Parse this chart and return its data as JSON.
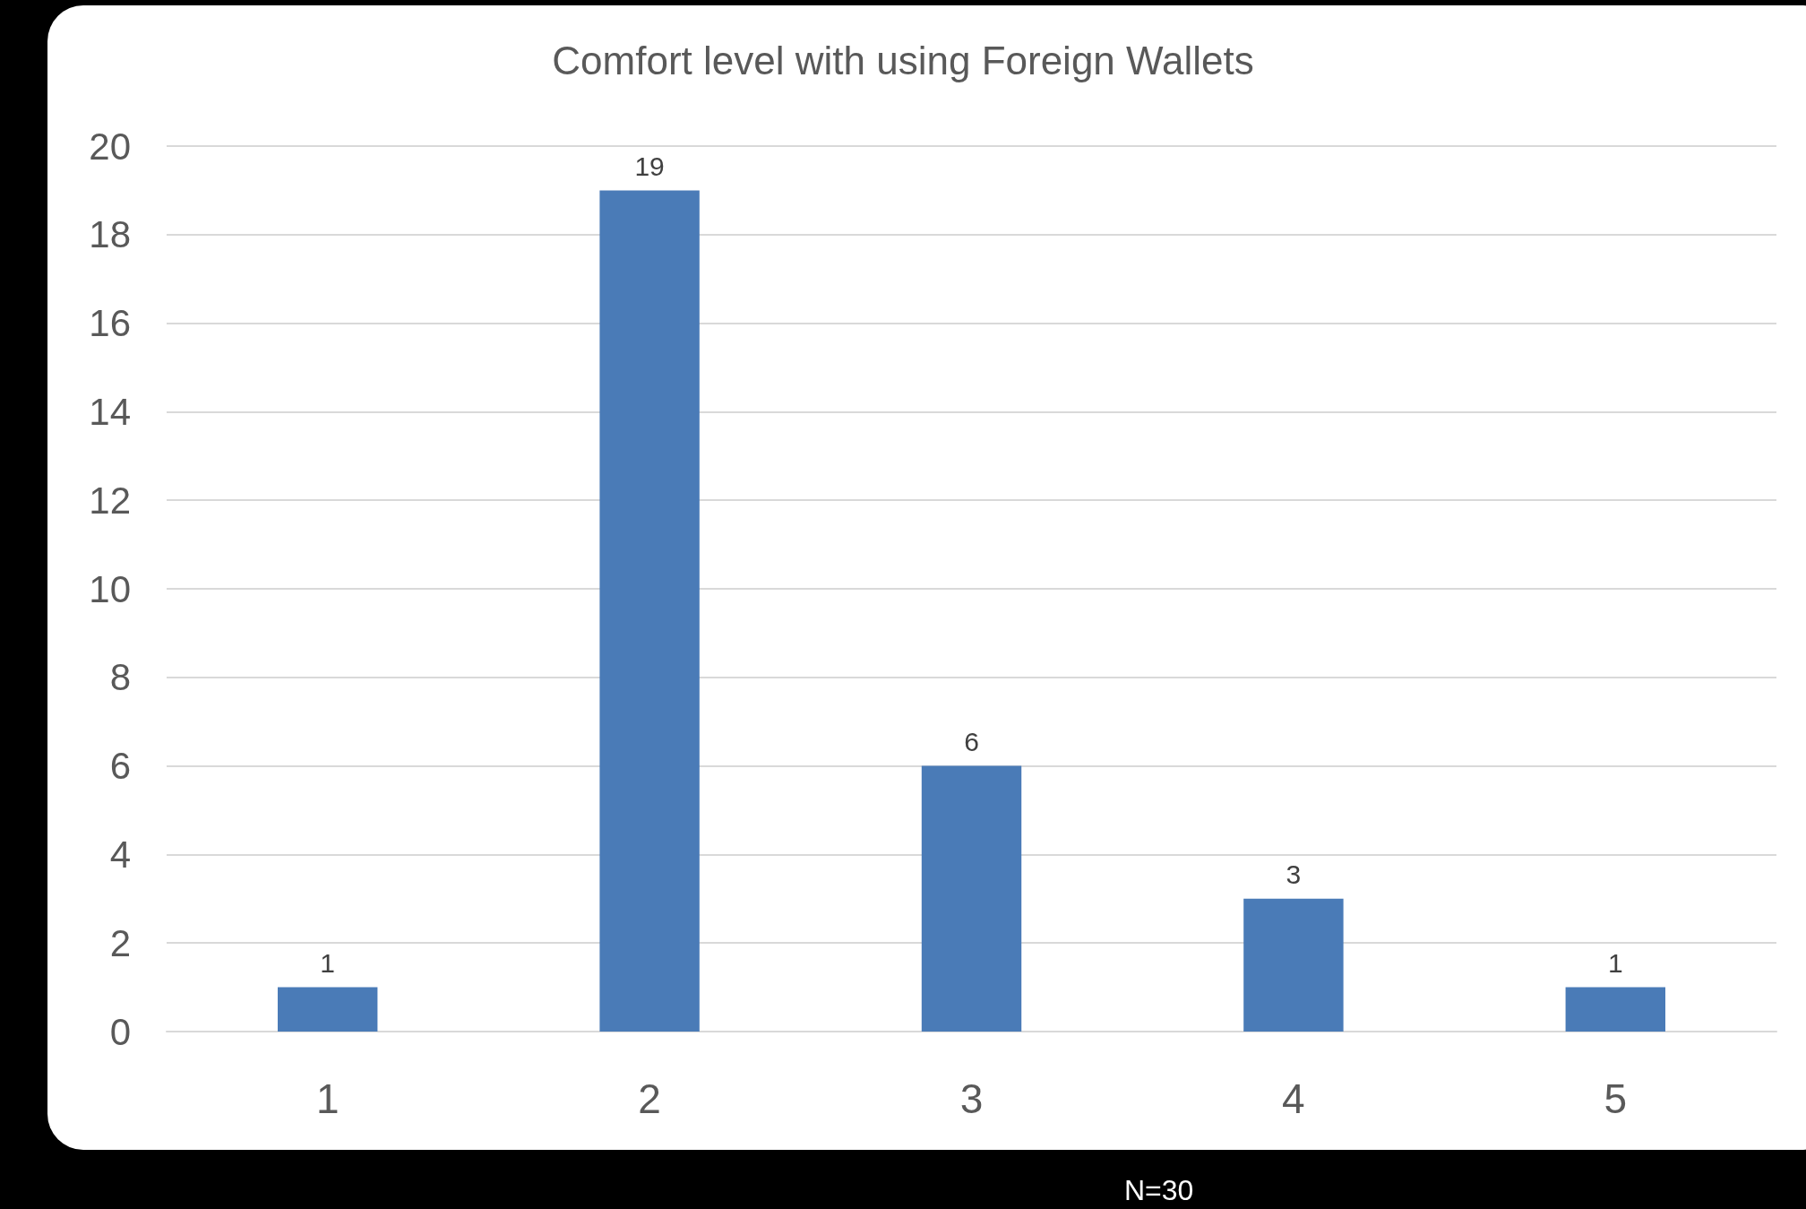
{
  "chart_data": {
    "type": "bar",
    "title": "Comfort level with using Foreign Wallets",
    "categories": [
      "1",
      "2",
      "3",
      "4",
      "5"
    ],
    "values": [
      1,
      19,
      6,
      3,
      1
    ],
    "color": "#4a7bb7",
    "ylim": [
      0,
      20
    ],
    "yticks": [
      0,
      2,
      4,
      6,
      8,
      10,
      12,
      14,
      16,
      18,
      20
    ],
    "grid": "y",
    "data_labels": true,
    "annotations": [
      "N=30"
    ]
  }
}
